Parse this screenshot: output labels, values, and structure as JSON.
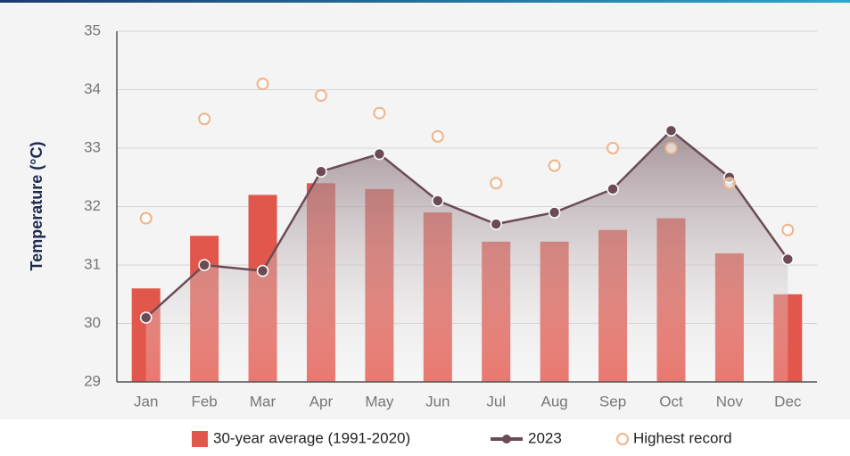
{
  "chart_data": {
    "type": "bar-line",
    "y_label": "Temperature (°C)",
    "categories": [
      "Jan",
      "Feb",
      "Mar",
      "Apr",
      "May",
      "Jun",
      "Jul",
      "Aug",
      "Sep",
      "Oct",
      "Nov",
      "Dec"
    ],
    "series": [
      {
        "name": "30-year average (1991-2020)",
        "type": "bar",
        "color": "#e2574c",
        "values": [
          30.6,
          31.5,
          32.2,
          32.4,
          32.3,
          31.9,
          31.4,
          31.4,
          31.6,
          31.8,
          31.2,
          30.5
        ]
      },
      {
        "name": "2023",
        "type": "line",
        "color": "#6b4c55",
        "values": [
          30.1,
          31.0,
          30.9,
          32.6,
          32.9,
          32.1,
          31.7,
          31.9,
          32.3,
          33.3,
          32.5,
          31.1
        ]
      },
      {
        "name": "Highest record",
        "type": "scatter",
        "color": "#f0b48a",
        "values": [
          31.8,
          33.5,
          34.1,
          33.9,
          33.6,
          33.2,
          32.4,
          32.7,
          33.0,
          33.0,
          32.4,
          31.6
        ]
      }
    ],
    "ylim": [
      29,
      35
    ],
    "yticks": [
      29,
      30,
      31,
      32,
      33,
      34,
      35
    ],
    "grid": true
  }
}
